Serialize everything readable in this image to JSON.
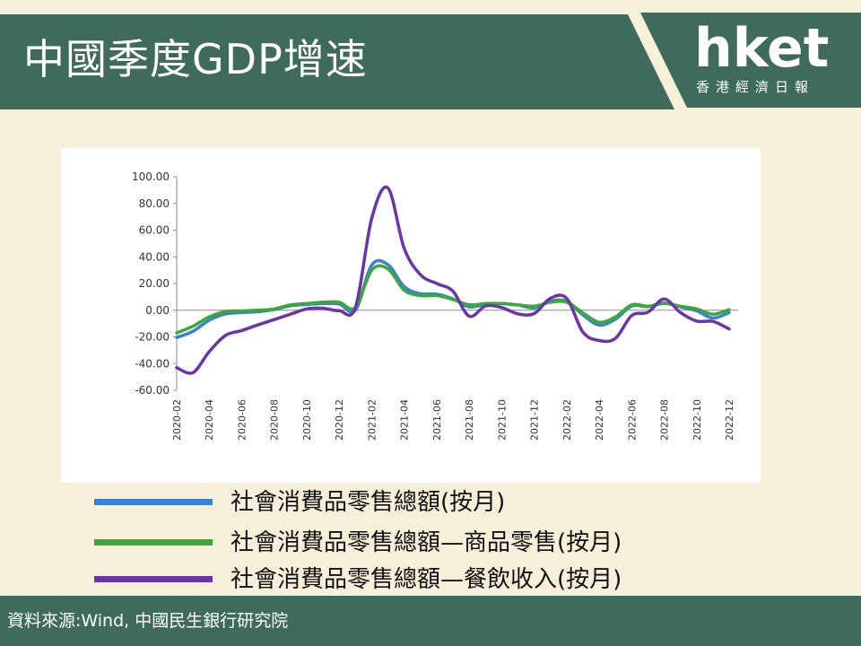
{
  "header": {
    "title": "中國季度GDP增速",
    "logo": "hket",
    "logo_sub": "香港經濟日報"
  },
  "colors": {
    "banner": "#3f6b5c",
    "background": "#f6efd9",
    "series_total": "#3c7fd6",
    "series_goods": "#3aa935",
    "series_catering": "#6a35a6"
  },
  "legend": [
    {
      "label": "社會消費品零售總額(按月)",
      "color": "#3c7fd6"
    },
    {
      "label": "社會消費品零售總額—商品零售(按月)",
      "color": "#3aa935"
    },
    {
      "label": "社會消費品零售總額—餐飲收入(按月)",
      "color": "#6a35a6"
    }
  ],
  "footer": {
    "source": "資料來源:Wind, 中國民生銀行研究院"
  },
  "chart_data": {
    "type": "line",
    "ylim": [
      -60,
      100
    ],
    "y_ticks": [
      "100.00",
      "80.00",
      "60.00",
      "40.00",
      "20.00",
      "0.00",
      "-20.00",
      "-40.00",
      "-60.00"
    ],
    "y_tick_values": [
      100,
      80,
      60,
      40,
      20,
      0,
      -20,
      -40,
      -60
    ],
    "x": [
      "2020-02",
      "2020-03",
      "2020-04",
      "2020-05",
      "2020-06",
      "2020-07",
      "2020-08",
      "2020-09",
      "2020-10",
      "2020-11",
      "2020-12",
      "2021-01",
      "2021-02",
      "2021-03",
      "2021-04",
      "2021-05",
      "2021-06",
      "2021-07",
      "2021-08",
      "2021-09",
      "2021-10",
      "2021-11",
      "2021-12",
      "2022-01",
      "2022-02",
      "2022-03",
      "2022-04",
      "2022-05",
      "2022-06",
      "2022-07",
      "2022-08",
      "2022-09",
      "2022-10",
      "2022-11",
      "2022-12"
    ],
    "x_tick_labels": [
      "2020-02",
      "2020-04",
      "2020-06",
      "2020-08",
      "2020-10",
      "2020-12",
      "2021-02",
      "2021-04",
      "2021-06",
      "2021-08",
      "2021-10",
      "2021-12",
      "2022-02",
      "2022-04",
      "2022-06",
      "2022-08",
      "2022-10",
      "2022-12"
    ],
    "series": [
      {
        "name": "社會消費品零售總額(按月)",
        "color": "#3c7fd6",
        "values": [
          -20.5,
          -15.8,
          -7.5,
          -2.8,
          -1.8,
          -1.1,
          0.5,
          3.3,
          4.3,
          5.0,
          4.6,
          0.0,
          33.8,
          34.2,
          17.7,
          12.4,
          12.1,
          8.5,
          2.5,
          4.4,
          4.9,
          3.9,
          1.7,
          6.7,
          6.7,
          -3.5,
          -11.1,
          -6.7,
          3.1,
          2.7,
          5.4,
          2.5,
          -0.5,
          -5.9,
          -1.8
        ]
      },
      {
        "name": "社會消費品零售總額—商品零售(按月)",
        "color": "#3aa935",
        "values": [
          -17.0,
          -12.0,
          -5.0,
          -1.0,
          -0.5,
          0.0,
          1.0,
          4.0,
          5.0,
          6.0,
          6.0,
          2.0,
          30.0,
          31.0,
          15.0,
          11.0,
          11.0,
          8.0,
          4.0,
          5.0,
          5.0,
          4.0,
          3.0,
          6.0,
          6.0,
          -2.0,
          -9.0,
          -5.0,
          4.0,
          3.0,
          5.0,
          3.0,
          1.0,
          -3.0,
          0.5
        ]
      },
      {
        "name": "社會消費品零售總額—餐飲收入(按月)",
        "color": "#6a35a6",
        "values": [
          -43.0,
          -46.8,
          -31.1,
          -18.9,
          -15.2,
          -11.0,
          -7.0,
          -3.0,
          1.0,
          1.5,
          -0.4,
          2.0,
          68.7,
          91.6,
          46.4,
          26.6,
          20.0,
          14.3,
          -4.5,
          3.1,
          2.0,
          -2.7,
          -2.5,
          8.9,
          8.9,
          -16.4,
          -22.7,
          -21.1,
          -4.0,
          -1.5,
          8.4,
          -1.7,
          -8.1,
          -8.4,
          -14.1
        ]
      }
    ],
    "xlabel": "",
    "ylabel": "",
    "grid": false
  }
}
